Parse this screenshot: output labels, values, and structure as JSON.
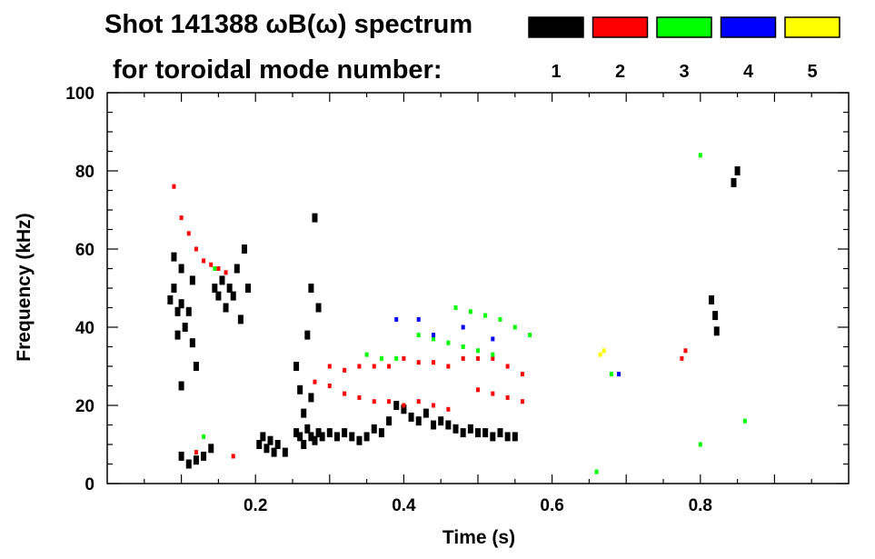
{
  "chart_data": {
    "type": "scatter",
    "title_line1": "Shot 141388 ωB(ω) spectrum",
    "title_line2": "for toroidal mode number:",
    "xlabel": "Time (s)",
    "ylabel": "Frequency (kHz)",
    "xlim": [
      0.0,
      1.0
    ],
    "ylim": [
      0,
      100
    ],
    "x_ticks": [
      0.2,
      0.4,
      0.6,
      0.8
    ],
    "x_tick_labels": [
      "0.2",
      "0.4",
      "0.6",
      "0.8"
    ],
    "y_ticks": [
      0,
      20,
      40,
      60,
      80,
      100
    ],
    "y_tick_labels": [
      "0",
      "20",
      "40",
      "60",
      "80",
      "100"
    ],
    "legend": {
      "placement": "top-right",
      "entries": [
        {
          "label": "1",
          "color": "#000000"
        },
        {
          "label": "2",
          "color": "#ff0000"
        },
        {
          "label": "3",
          "color": "#00ff00"
        },
        {
          "label": "4",
          "color": "#0000ff"
        },
        {
          "label": "5",
          "color": "#ffff00"
        }
      ]
    },
    "series": [
      {
        "mode": "1",
        "color": "#000000",
        "points": [
          [
            0.085,
            47
          ],
          [
            0.09,
            50
          ],
          [
            0.095,
            44
          ],
          [
            0.1,
            46
          ],
          [
            0.105,
            40
          ],
          [
            0.11,
            44
          ],
          [
            0.115,
            36
          ],
          [
            0.09,
            58
          ],
          [
            0.1,
            55
          ],
          [
            0.095,
            38
          ],
          [
            0.115,
            52
          ],
          [
            0.12,
            30
          ],
          [
            0.1,
            25
          ],
          [
            0.1,
            7
          ],
          [
            0.11,
            5
          ],
          [
            0.12,
            6
          ],
          [
            0.13,
            7
          ],
          [
            0.14,
            9
          ],
          [
            0.145,
            50
          ],
          [
            0.15,
            48
          ],
          [
            0.155,
            52
          ],
          [
            0.16,
            45
          ],
          [
            0.165,
            50
          ],
          [
            0.17,
            48
          ],
          [
            0.175,
            55
          ],
          [
            0.18,
            42
          ],
          [
            0.185,
            60
          ],
          [
            0.19,
            50
          ],
          [
            0.205,
            10
          ],
          [
            0.21,
            12
          ],
          [
            0.215,
            9
          ],
          [
            0.22,
            11
          ],
          [
            0.225,
            8
          ],
          [
            0.23,
            10
          ],
          [
            0.24,
            8
          ],
          [
            0.255,
            13
          ],
          [
            0.26,
            12
          ],
          [
            0.265,
            10
          ],
          [
            0.27,
            14
          ],
          [
            0.275,
            12
          ],
          [
            0.28,
            11
          ],
          [
            0.285,
            13
          ],
          [
            0.29,
            12
          ],
          [
            0.255,
            30
          ],
          [
            0.26,
            24
          ],
          [
            0.265,
            18
          ],
          [
            0.275,
            22
          ],
          [
            0.3,
            13
          ],
          [
            0.31,
            12
          ],
          [
            0.32,
            13
          ],
          [
            0.33,
            12
          ],
          [
            0.34,
            11
          ],
          [
            0.35,
            12
          ],
          [
            0.36,
            14
          ],
          [
            0.37,
            13
          ],
          [
            0.38,
            16
          ],
          [
            0.39,
            20
          ],
          [
            0.4,
            19
          ],
          [
            0.41,
            17
          ],
          [
            0.42,
            16
          ],
          [
            0.43,
            18
          ],
          [
            0.44,
            15
          ],
          [
            0.45,
            16
          ],
          [
            0.46,
            15
          ],
          [
            0.47,
            14
          ],
          [
            0.48,
            13
          ],
          [
            0.49,
            14
          ],
          [
            0.5,
            13
          ],
          [
            0.51,
            13
          ],
          [
            0.52,
            12
          ],
          [
            0.53,
            13
          ],
          [
            0.54,
            12
          ],
          [
            0.55,
            12
          ],
          [
            0.275,
            50
          ],
          [
            0.285,
            45
          ],
          [
            0.28,
            68
          ],
          [
            0.27,
            38
          ],
          [
            0.815,
            47
          ],
          [
            0.82,
            43
          ],
          [
            0.822,
            39
          ],
          [
            0.845,
            77
          ],
          [
            0.85,
            80
          ]
        ]
      },
      {
        "mode": "2",
        "color": "#ff0000",
        "points": [
          [
            0.09,
            76
          ],
          [
            0.1,
            68
          ],
          [
            0.11,
            64
          ],
          [
            0.12,
            60
          ],
          [
            0.13,
            57
          ],
          [
            0.14,
            56
          ],
          [
            0.15,
            55
          ],
          [
            0.16,
            54
          ],
          [
            0.3,
            30
          ],
          [
            0.32,
            29
          ],
          [
            0.34,
            30
          ],
          [
            0.36,
            30
          ],
          [
            0.38,
            30
          ],
          [
            0.28,
            26
          ],
          [
            0.3,
            25
          ],
          [
            0.32,
            23
          ],
          [
            0.34,
            22
          ],
          [
            0.36,
            21
          ],
          [
            0.38,
            21
          ],
          [
            0.4,
            20
          ],
          [
            0.42,
            21
          ],
          [
            0.44,
            20
          ],
          [
            0.46,
            19
          ],
          [
            0.4,
            32
          ],
          [
            0.42,
            31
          ],
          [
            0.44,
            31
          ],
          [
            0.46,
            30
          ],
          [
            0.48,
            32
          ],
          [
            0.5,
            32
          ],
          [
            0.52,
            32
          ],
          [
            0.54,
            30
          ],
          [
            0.56,
            28
          ],
          [
            0.5,
            24
          ],
          [
            0.52,
            23
          ],
          [
            0.54,
            22
          ],
          [
            0.56,
            21
          ],
          [
            0.17,
            7
          ],
          [
            0.12,
            8
          ],
          [
            0.775,
            32
          ],
          [
            0.78,
            34
          ]
        ]
      },
      {
        "mode": "3",
        "color": "#00ff00",
        "points": [
          [
            0.42,
            38
          ],
          [
            0.44,
            37
          ],
          [
            0.46,
            36
          ],
          [
            0.48,
            35
          ],
          [
            0.5,
            34
          ],
          [
            0.52,
            33
          ],
          [
            0.47,
            45
          ],
          [
            0.49,
            44
          ],
          [
            0.51,
            43
          ],
          [
            0.53,
            42
          ],
          [
            0.55,
            40
          ],
          [
            0.57,
            38
          ],
          [
            0.35,
            33
          ],
          [
            0.37,
            32
          ],
          [
            0.39,
            32
          ],
          [
            0.13,
            12
          ],
          [
            0.145,
            55
          ],
          [
            0.68,
            28
          ],
          [
            0.8,
            10
          ],
          [
            0.86,
            16
          ],
          [
            0.8,
            84
          ],
          [
            0.66,
            3
          ]
        ]
      },
      {
        "mode": "4",
        "color": "#0000ff",
        "points": [
          [
            0.39,
            42
          ],
          [
            0.42,
            42
          ],
          [
            0.44,
            38
          ],
          [
            0.48,
            40
          ],
          [
            0.52,
            37
          ],
          [
            0.69,
            28
          ]
        ]
      },
      {
        "mode": "5",
        "color": "#ffff00",
        "points": [
          [
            0.665,
            33
          ],
          [
            0.67,
            34
          ]
        ]
      }
    ]
  }
}
